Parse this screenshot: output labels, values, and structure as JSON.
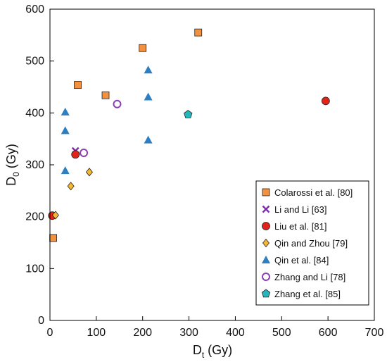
{
  "chart_data": {
    "type": "scatter",
    "xlabel": {
      "main": "D",
      "sub": "t",
      "unit": " (Gy)"
    },
    "ylabel": {
      "main": "D",
      "sub": "0",
      "unit": " (Gy)"
    },
    "xlim": [
      0,
      700
    ],
    "ylim": [
      0,
      600
    ],
    "xticks": [
      0,
      100,
      200,
      300,
      400,
      500,
      600,
      700
    ],
    "yticks": [
      0,
      100,
      200,
      300,
      400,
      500,
      600
    ],
    "grid": false,
    "legend_position": "bottom-right",
    "series": [
      {
        "name": "Colarossi et al. [80]",
        "marker": "square",
        "color": "#F4913E",
        "points": [
          [
            7,
            159
          ],
          [
            60,
            454
          ],
          [
            120,
            434
          ],
          [
            200,
            525
          ],
          [
            320,
            555
          ]
        ]
      },
      {
        "name": "Li and Li [63]",
        "marker": "x",
        "color": "#7B2FA8",
        "points": [
          [
            55,
            327
          ]
        ]
      },
      {
        "name": "Liu et al. [81]",
        "marker": "circle",
        "color": "#E2231A",
        "points": [
          [
            5,
            202
          ],
          [
            55,
            320
          ],
          [
            595,
            423
          ]
        ]
      },
      {
        "name": "Qin and Zhou [79]",
        "marker": "diamond",
        "color": "#F7B731",
        "points": [
          [
            12,
            203
          ],
          [
            45,
            259
          ],
          [
            85,
            286
          ]
        ]
      },
      {
        "name": "Qin et al. [84]",
        "marker": "triangle",
        "color": "#2E7FC1",
        "points": [
          [
            33,
            289
          ],
          [
            33,
            366
          ],
          [
            33,
            402
          ],
          [
            212,
            348
          ],
          [
            212,
            431
          ],
          [
            212,
            483
          ]
        ]
      },
      {
        "name": "Zhang and Li [78]",
        "marker": "open-circle",
        "color": "#8A3FB5",
        "points": [
          [
            73,
            323
          ],
          [
            145,
            417
          ]
        ]
      },
      {
        "name": "Zhang et al. [85]",
        "marker": "pentagon",
        "color": "#27B5BC",
        "points": [
          [
            298,
            397
          ]
        ]
      }
    ]
  }
}
